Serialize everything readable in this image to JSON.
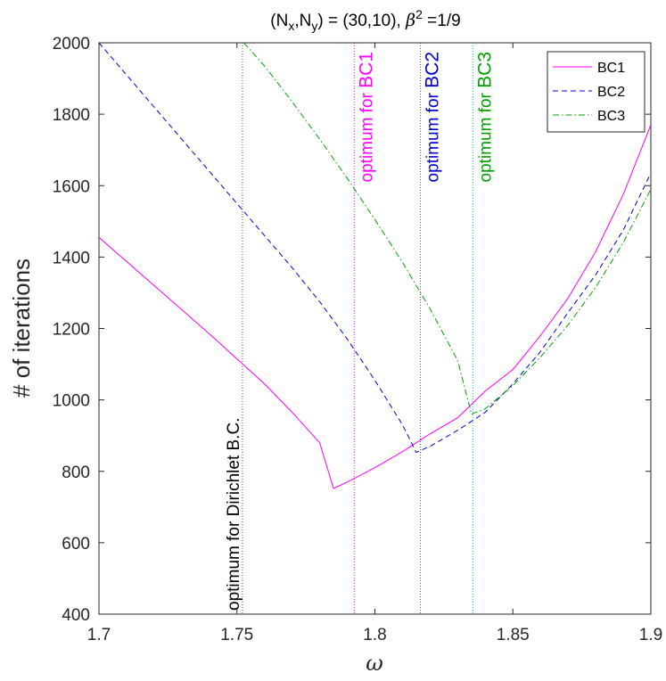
{
  "chart_data": {
    "type": "line",
    "title_parts": {
      "pre": "(N",
      "sub_x": "x",
      "mid1": ",N",
      "sub_y": "y",
      "mid2": ") = (30,10),  ",
      "beta": "β",
      "sup": "2",
      "post": " =1/9"
    },
    "xlabel": "ω",
    "ylabel": "# of iterations",
    "xlim": [
      1.7,
      1.9
    ],
    "ylim": [
      400,
      2000
    ],
    "xticks": [
      "1.7",
      "1.75",
      "1.8",
      "1.85",
      "1.9"
    ],
    "yticks": [
      "400",
      "600",
      "800",
      "1000",
      "1200",
      "1400",
      "1600",
      "1800",
      "2000"
    ],
    "legend_position": "top-right",
    "series": [
      {
        "name": "BC1",
        "color": "#ff00ff",
        "dash": "solid",
        "x": [
          1.7,
          1.72,
          1.74,
          1.76,
          1.77,
          1.78,
          1.785,
          1.79,
          1.8,
          1.81,
          1.82,
          1.83,
          1.84,
          1.85,
          1.86,
          1.87,
          1.88,
          1.89,
          1.9
        ],
        "y": [
          1455,
          1320,
          1185,
          1045,
          965,
          880,
          752,
          770,
          810,
          855,
          905,
          950,
          1025,
          1085,
          1180,
          1285,
          1415,
          1575,
          1770
        ]
      },
      {
        "name": "BC2",
        "color": "#0000cc",
        "dash": "dashed",
        "x": [
          1.7,
          1.72,
          1.74,
          1.76,
          1.77,
          1.78,
          1.79,
          1.8,
          1.81,
          1.815,
          1.82,
          1.83,
          1.84,
          1.85,
          1.86,
          1.87,
          1.88,
          1.89,
          1.9
        ],
        "y": [
          2000,
          1820,
          1640,
          1460,
          1370,
          1275,
          1170,
          1055,
          930,
          853,
          870,
          915,
          965,
          1045,
          1135,
          1245,
          1350,
          1475,
          1635
        ]
      },
      {
        "name": "BC3",
        "color": "#00a000",
        "dash": "dashdot",
        "x": [
          1.7525,
          1.76,
          1.77,
          1.78,
          1.79,
          1.8,
          1.81,
          1.82,
          1.83,
          1.835,
          1.84,
          1.85,
          1.86,
          1.87,
          1.88,
          1.89,
          1.9
        ],
        "y": [
          2000,
          1935,
          1835,
          1730,
          1620,
          1505,
          1385,
          1255,
          1110,
          960,
          975,
          1040,
          1120,
          1210,
          1315,
          1440,
          1590
        ]
      }
    ],
    "vlines": [
      {
        "x": 1.752,
        "color": "#555555",
        "label": "optimum for Dirichlet B.C.",
        "label_pre": "optimum for ",
        "label_hi": "Dirichlet B.C.",
        "text_color": "#000000",
        "hi_color": "#000000",
        "anchor": "bottom"
      },
      {
        "x": 1.7925,
        "color": "#ff00ff",
        "label": "optimum for BC1",
        "label_pre": "optimum for ",
        "label_hi": "BC1",
        "text_color": "#ff00ff",
        "hi_color": "#ff00ff",
        "anchor": "top"
      },
      {
        "x": 1.8165,
        "color": "#555555",
        "label": "optimum for BC2",
        "label_pre": "optimum for ",
        "label_hi": "BC2",
        "text_color": "#0000cc",
        "hi_color": "#0000cc",
        "anchor": "top"
      },
      {
        "x": 1.8355,
        "color": "#00c8c8",
        "label": "optimum for BC3",
        "label_pre": "optimum for ",
        "label_hi": "BC3",
        "text_color": "#00a000",
        "hi_color": "#00a000",
        "anchor": "top"
      }
    ],
    "grid": false
  }
}
